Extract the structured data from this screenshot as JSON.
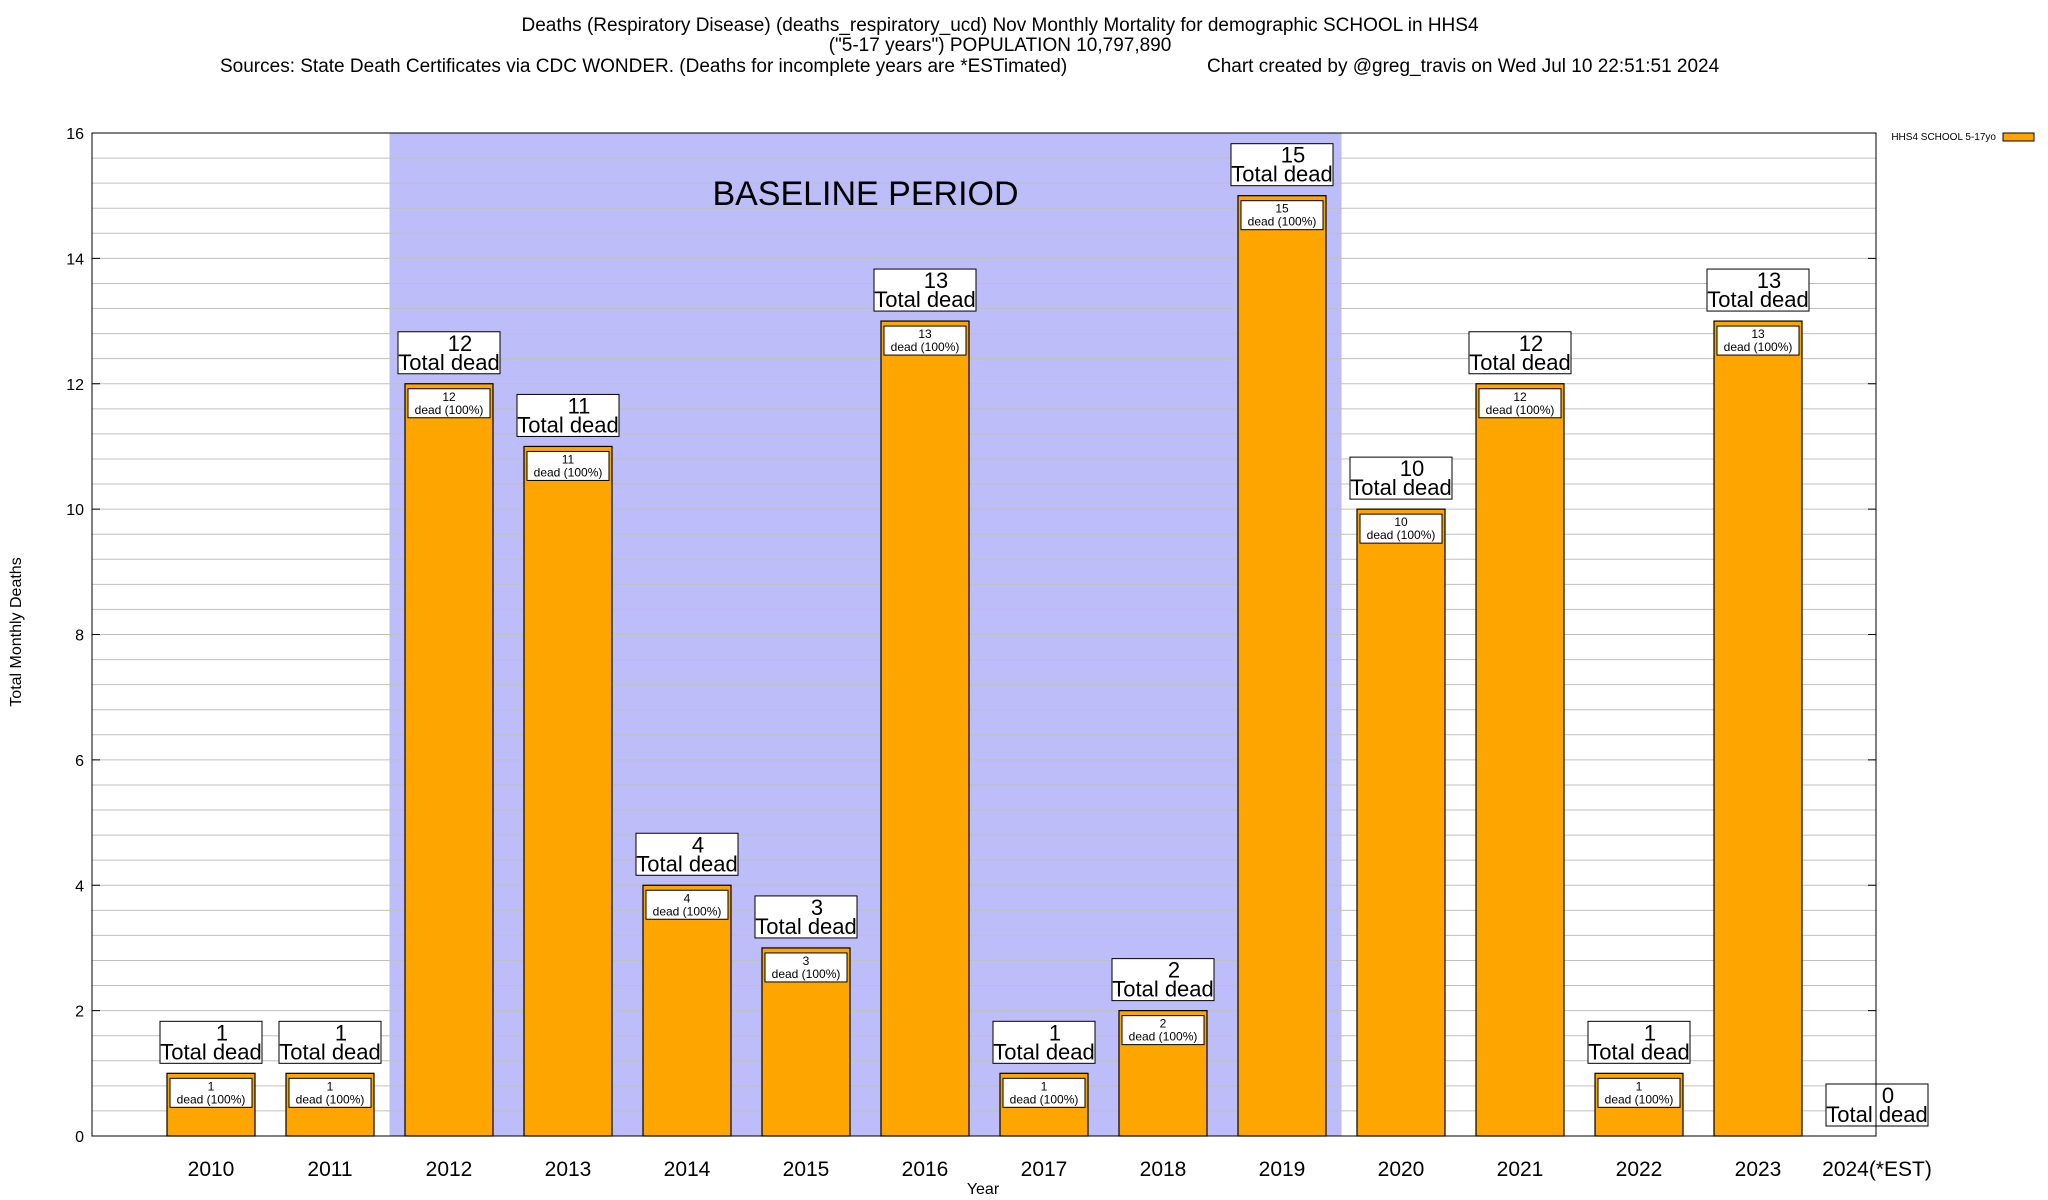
{
  "title": {
    "line1": "Deaths (Respiratory Disease) (deaths_respiratory_ucd) Nov Monthly Mortality for demographic SCHOOL in HHS4",
    "line2": "(\"5-17 years\") POPULATION 10,797,890",
    "line3_left": "Sources: State Death Certificates via CDC WONDER. (Deaths for incomplete years are *ESTimated)",
    "line3_right": "Chart created by @greg_travis on Wed Jul 10 22:51:51 2024"
  },
  "annotation": {
    "baseline_label": "BASELINE PERIOD",
    "baseline_start": "2012",
    "baseline_end": "2019",
    "total_word": "Total dead",
    "inner_word": "dead (100%)"
  },
  "colors": {
    "bar_fill": "#FFA500",
    "baseline_band": "#BDBDF9",
    "grid": "#C0C0C0"
  },
  "chart_data": {
    "type": "bar",
    "title": "Deaths (Respiratory Disease) (deaths_respiratory_ucd) Nov Monthly Mortality for demographic SCHOOL in HHS4",
    "xlabel": "Year",
    "ylabel": "Total Monthly Deaths",
    "ylim": [
      0,
      16
    ],
    "yticks": [
      0,
      2,
      4,
      6,
      8,
      10,
      12,
      14,
      16
    ],
    "grid": true,
    "legend_position": "top-right",
    "categories": [
      "2010",
      "2011",
      "2012",
      "2013",
      "2014",
      "2015",
      "2016",
      "2017",
      "2018",
      "2019",
      "2020",
      "2021",
      "2022",
      "2023",
      "2024(*EST)"
    ],
    "series": [
      {
        "name": "HHS4 SCHOOL 5-17yo",
        "values": [
          1,
          1,
          12,
          11,
          4,
          3,
          13,
          1,
          2,
          15,
          10,
          12,
          1,
          13,
          0
        ]
      }
    ]
  }
}
